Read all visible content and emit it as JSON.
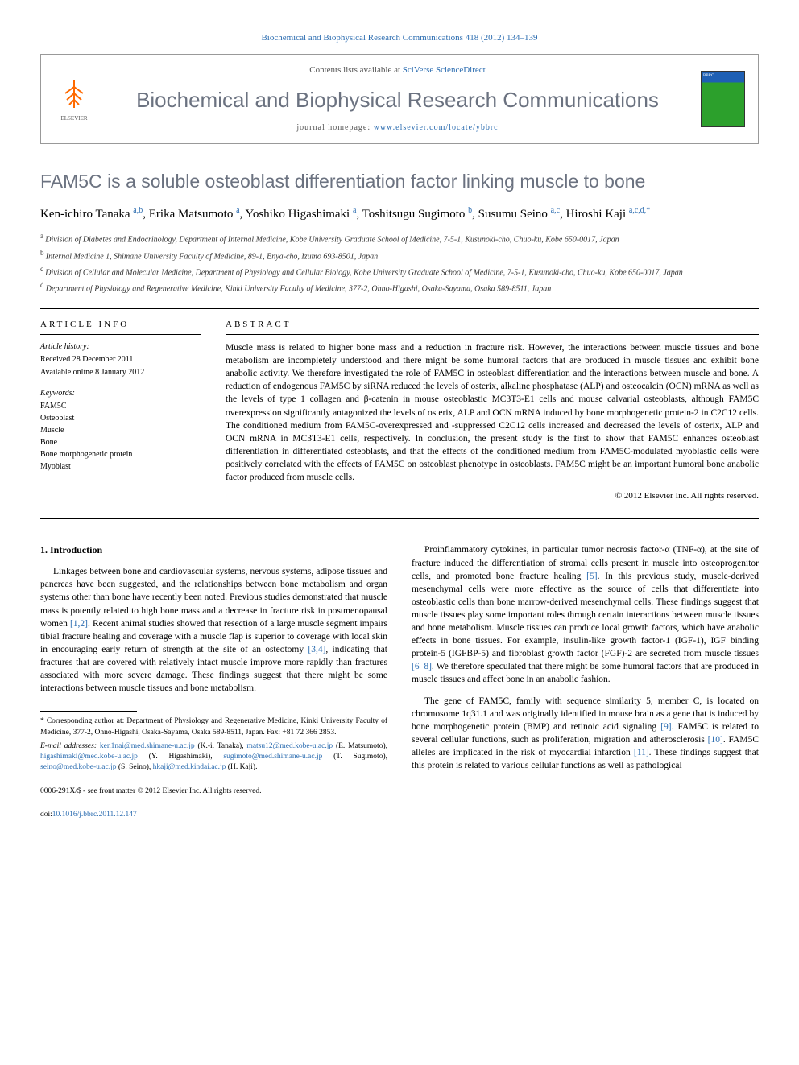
{
  "citation": "Biochemical and Biophysical Research Communications 418 (2012) 134–139",
  "header": {
    "contents_prefix": "Contents lists available at ",
    "contents_link": "SciVerse ScienceDirect",
    "journal_title": "Biochemical and Biophysical Research Communications",
    "homepage_prefix": "journal homepage: ",
    "homepage_link": "www.elsevier.com/locate/ybbrc",
    "elsevier_label": "ELSEVIER",
    "cover_text": "BBRC"
  },
  "title": "FAM5C is a soluble osteoblast differentiation factor linking muscle to bone",
  "authors": [
    {
      "name": "Ken-ichiro Tanaka",
      "sup": "a,b"
    },
    {
      "name": "Erika Matsumoto",
      "sup": "a"
    },
    {
      "name": "Yoshiko Higashimaki",
      "sup": "a"
    },
    {
      "name": "Toshitsugu Sugimoto",
      "sup": "b"
    },
    {
      "name": "Susumu Seino",
      "sup": "a,c"
    },
    {
      "name": "Hiroshi Kaji",
      "sup": "a,c,d,*"
    }
  ],
  "affiliations": [
    {
      "sup": "a",
      "text": "Division of Diabetes and Endocrinology, Department of Internal Medicine, Kobe University Graduate School of Medicine, 7-5-1, Kusunoki-cho, Chuo-ku, Kobe 650-0017, Japan"
    },
    {
      "sup": "b",
      "text": "Internal Medicine 1, Shimane University Faculty of Medicine, 89-1, Enya-cho, Izumo 693-8501, Japan"
    },
    {
      "sup": "c",
      "text": "Division of Cellular and Molecular Medicine, Department of Physiology and Cellular Biology, Kobe University Graduate School of Medicine, 7-5-1, Kusunoki-cho, Chuo-ku, Kobe 650-0017, Japan"
    },
    {
      "sup": "d",
      "text": "Department of Physiology and Regenerative Medicine, Kinki University Faculty of Medicine, 377-2, Ohno-Higashi, Osaka-Sayama, Osaka 589-8511, Japan"
    }
  ],
  "article_info": {
    "heading": "ARTICLE INFO",
    "history_label": "Article history:",
    "received": "Received 28 December 2011",
    "available": "Available online 8 January 2012",
    "keywords_label": "Keywords:",
    "keywords": [
      "FAM5C",
      "Osteoblast",
      "Muscle",
      "Bone",
      "Bone morphogenetic protein",
      "Myoblast"
    ]
  },
  "abstract": {
    "heading": "ABSTRACT",
    "text": "Muscle mass is related to higher bone mass and a reduction in fracture risk. However, the interactions between muscle tissues and bone metabolism are incompletely understood and there might be some humoral factors that are produced in muscle tissues and exhibit bone anabolic activity. We therefore investigated the role of FAM5C in osteoblast differentiation and the interactions between muscle and bone. A reduction of endogenous FAM5C by siRNA reduced the levels of osterix, alkaline phosphatase (ALP) and osteocalcin (OCN) mRNA as well as the levels of type 1 collagen and β-catenin in mouse osteoblastic MC3T3-E1 cells and mouse calvarial osteoblasts, although FAM5C overexpression significantly antagonized the levels of osterix, ALP and OCN mRNA induced by bone morphogenetic protein-2 in C2C12 cells. The conditioned medium from FAM5C-overexpressed and -suppressed C2C12 cells increased and decreased the levels of osterix, ALP and OCN mRNA in MC3T3-E1 cells, respectively. In conclusion, the present study is the first to show that FAM5C enhances osteoblast differentiation in differentiated osteoblasts, and that the effects of the conditioned medium from FAM5C-modulated myoblastic cells were positively correlated with the effects of FAM5C on osteoblast phenotype in osteoblasts. FAM5C might be an important humoral bone anabolic factor produced from muscle cells.",
    "copyright": "© 2012 Elsevier Inc. All rights reserved."
  },
  "intro": {
    "heading": "1. Introduction",
    "para1": "Linkages between bone and cardiovascular systems, nervous systems, adipose tissues and pancreas have been suggested, and the relationships between bone metabolism and organ systems other than bone have recently been noted. Previous studies demonstrated that muscle mass is potently related to high bone mass and a decrease in fracture risk in postmenopausal women [1,2]. Recent animal studies showed that resection of a large muscle segment impairs tibial fracture healing and coverage with a muscle flap is superior to coverage with local skin in encouraging early return of strength at the site of an osteotomy [3,4], indicating that fractures that are covered with relatively intact muscle improve more rapidly than fractures associated with more severe damage. These findings suggest that there might be some interactions between muscle tissues and bone metabolism.",
    "para2": "Proinflammatory cytokines, in particular tumor necrosis factor-α (TNF-α), at the site of fracture induced the differentiation of stromal cells present in muscle into osteoprogenitor cells, and promoted bone fracture healing [5]. In this previous study, muscle-derived mesenchymal cells were more effective as the source of cells that differentiate into osteoblastic cells than bone marrow-derived mesenchymal cells. These findings suggest that muscle tissues play some important roles through certain interactions between muscle tissues and bone metabolism. Muscle tissues can produce local growth factors, which have anabolic effects in bone tissues. For example, insulin-like growth factor-1 (IGF-1), IGF binding protein-5 (IGFBP-5) and fibroblast growth factor (FGF)-2 are secreted from muscle tissues [6–8]. We therefore speculated that there might be some humoral factors that are produced in muscle tissues and affect bone in an anabolic fashion.",
    "para3": "The gene of FAM5C, family with sequence similarity 5, member C, is located on chromosome 1q31.1 and was originally identified in mouse brain as a gene that is induced by bone morphogenetic protein (BMP) and retinoic acid signaling [9]. FAM5C is related to several cellular functions, such as proliferation, migration and atherosclerosis [10]. FAM5C alleles are implicated in the risk of myocardial infarction [11]. These findings suggest that this protein is related to various cellular functions as well as pathological"
  },
  "footer": {
    "corresponding_label": "* Corresponding author at: Department of Physiology and Regenerative Medicine, Kinki University Faculty of Medicine, 377-2, Ohno-Higashi, Osaka-Sayama, Osaka 589-8511, Japan. Fax: +81 72 366 2853.",
    "email_label": "E-mail addresses:",
    "emails": [
      {
        "addr": "ken1nai@med.shimane-u.ac.jp",
        "who": "(K.-i. Tanaka)"
      },
      {
        "addr": "matsu12@med.kobe-u.ac.jp",
        "who": "(E. Matsumoto)"
      },
      {
        "addr": "higashimaki@med.kobe-u.ac.jp",
        "who": "(Y. Higashimaki)"
      },
      {
        "addr": "sugimoto@med.shimane-u.ac.jp",
        "who": "(T. Sugimoto)"
      },
      {
        "addr": "seino@med.kobe-u.ac.jp",
        "who": "(S. Seino)"
      },
      {
        "addr": "hkaji@med.kindai.ac.jp",
        "who": "(H. Kaji)"
      }
    ],
    "issn_line": "0006-291X/$ - see front matter © 2012 Elsevier Inc. All rights reserved.",
    "doi_label": "doi:",
    "doi": "10.1016/j.bbrc.2011.12.147"
  },
  "colors": {
    "link": "#2b6cb0",
    "title_gray": "#6b7280",
    "elsevier_orange": "#ff6a00"
  }
}
